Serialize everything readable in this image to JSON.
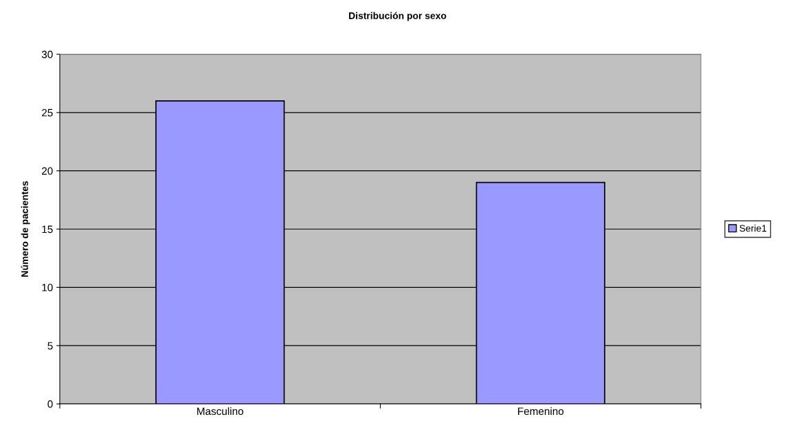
{
  "chart_data": {
    "type": "bar",
    "title": "Distribución por sexo",
    "ylabel": "Número de pacientes",
    "categories": [
      "Masculino",
      "Femenino"
    ],
    "series": [
      {
        "name": "Serie1",
        "color": "#9999ff",
        "values": [
          26,
          19
        ]
      }
    ],
    "ylim": [
      0,
      30
    ],
    "yticks": [
      0,
      5,
      10,
      15,
      20,
      25,
      30
    ],
    "grid": "y",
    "legend": "right"
  }
}
